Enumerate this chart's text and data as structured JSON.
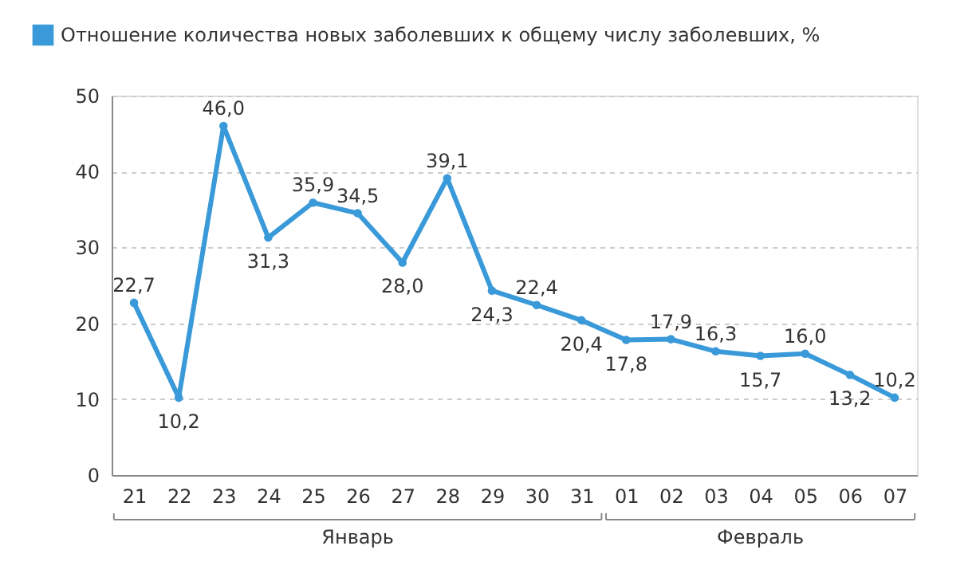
{
  "chart_data": {
    "type": "line",
    "categories": [
      "21",
      "22",
      "23",
      "24",
      "25",
      "26",
      "27",
      "28",
      "29",
      "30",
      "31",
      "01",
      "02",
      "03",
      "04",
      "05",
      "06",
      "07"
    ],
    "series": [
      {
        "name": "Отношение количества новых заболевших к общему числу заболевших, %",
        "color": "#3a9ad9",
        "values": [
          22.7,
          10.2,
          46.0,
          31.3,
          35.9,
          34.5,
          28.0,
          39.1,
          24.3,
          22.4,
          20.4,
          17.8,
          17.9,
          16.3,
          15.7,
          16.0,
          13.2,
          10.2
        ],
        "value_labels": [
          "22,7",
          "10,2",
          "46,0",
          "31,3",
          "35,9",
          "34,5",
          "28,0",
          "39,1",
          "24,3",
          "22,4",
          "20,4",
          "17,8",
          "17,9",
          "16,3",
          "15,7",
          "16,0",
          "13,2",
          "10,2"
        ]
      }
    ],
    "annotations": [
      "Январь",
      "Февраль"
    ],
    "ylim": [
      0,
      50
    ],
    "yticks": [
      0,
      10,
      20,
      30,
      40,
      50
    ],
    "grid": "y",
    "legend": "top left",
    "marker": "circle",
    "line_style": "solid"
  }
}
